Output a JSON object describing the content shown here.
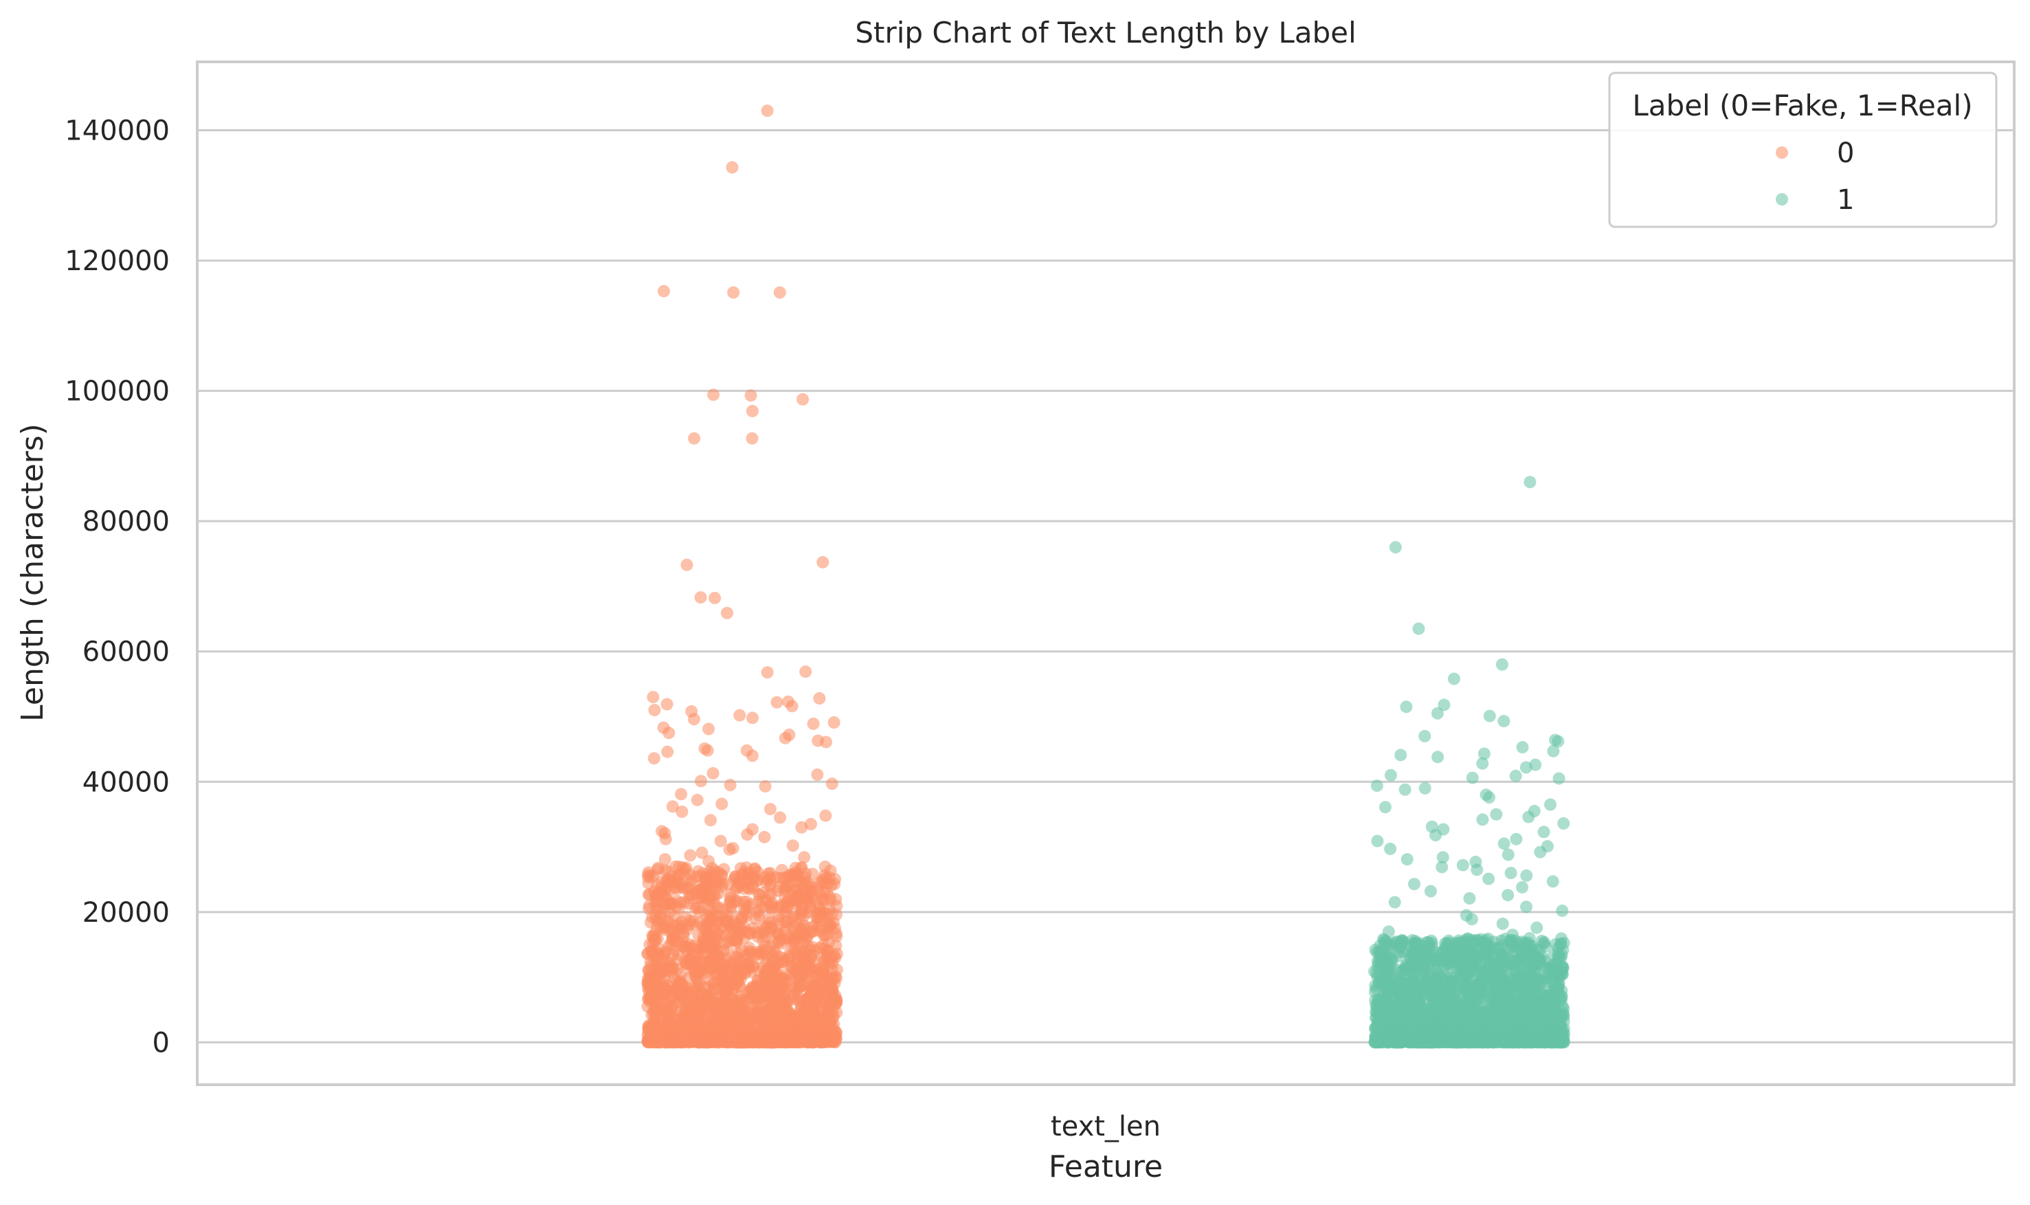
{
  "chart_data": {
    "type": "scatter",
    "variant": "strip",
    "title": "Strip Chart of Text Length by Label",
    "xlabel": "Feature",
    "ylabel": "Length (characters)",
    "categories": [
      "text_len"
    ],
    "ylim": [
      -6500,
      150500
    ],
    "yticks": [
      0,
      20000,
      40000,
      60000,
      80000,
      100000,
      120000,
      140000
    ],
    "grid": true,
    "legend": {
      "title": "Label (0=Fake, 1=Real)",
      "placement": "top-right",
      "entries": [
        "0",
        "1"
      ]
    },
    "series": [
      {
        "name": "0",
        "color": "#fc8d62",
        "note_dense_band_max": 27000,
        "values": [
          143000,
          134300,
          115300,
          115100,
          115100,
          99400,
          99300,
          98700,
          96900,
          92700,
          92700,
          73700,
          73300,
          68300,
          68200,
          65900,
          56900,
          56800,
          53000,
          52800,
          52300,
          52200,
          51900,
          51600,
          51000,
          50800,
          50200,
          49800,
          49600,
          49100,
          48900,
          48300,
          48100,
          47500,
          47200,
          46700,
          46300,
          46100,
          45100,
          44800,
          44800,
          44600,
          44000,
          43600,
          41300,
          41100,
          40100,
          39700,
          39500,
          39300,
          38100,
          37200,
          36600,
          36200,
          35800,
          35400,
          34800,
          34500,
          34100,
          33500,
          33000,
          32700,
          32400,
          32100,
          31900,
          31500,
          31200,
          30900,
          30200,
          29800,
          29600,
          29100,
          28700,
          28400,
          28100,
          27800
        ]
      },
      {
        "name": "1",
        "color": "#66c2a5",
        "note_dense_band_max": 16000,
        "values": [
          86000,
          76000,
          63500,
          58000,
          55800,
          51800,
          51500,
          50500,
          50100,
          49300,
          47000,
          46400,
          46200,
          45300,
          44700,
          44300,
          44100,
          43800,
          42800,
          42600,
          42200,
          41000,
          40900,
          40600,
          40500,
          39400,
          39000,
          38800,
          38000,
          37600,
          36500,
          36100,
          35500,
          35000,
          34600,
          34200,
          33600,
          33100,
          32700,
          32300,
          31800,
          31200,
          30900,
          30500,
          30100,
          29700,
          29200,
          28800,
          28400,
          28100,
          27700,
          27200,
          26900,
          26500,
          26000,
          25600,
          25100,
          24700,
          24300,
          23800,
          23200,
          22600,
          22100,
          21500,
          20800,
          20200,
          19500,
          18900,
          18200,
          17600,
          17000,
          16500
        ]
      }
    ]
  }
}
